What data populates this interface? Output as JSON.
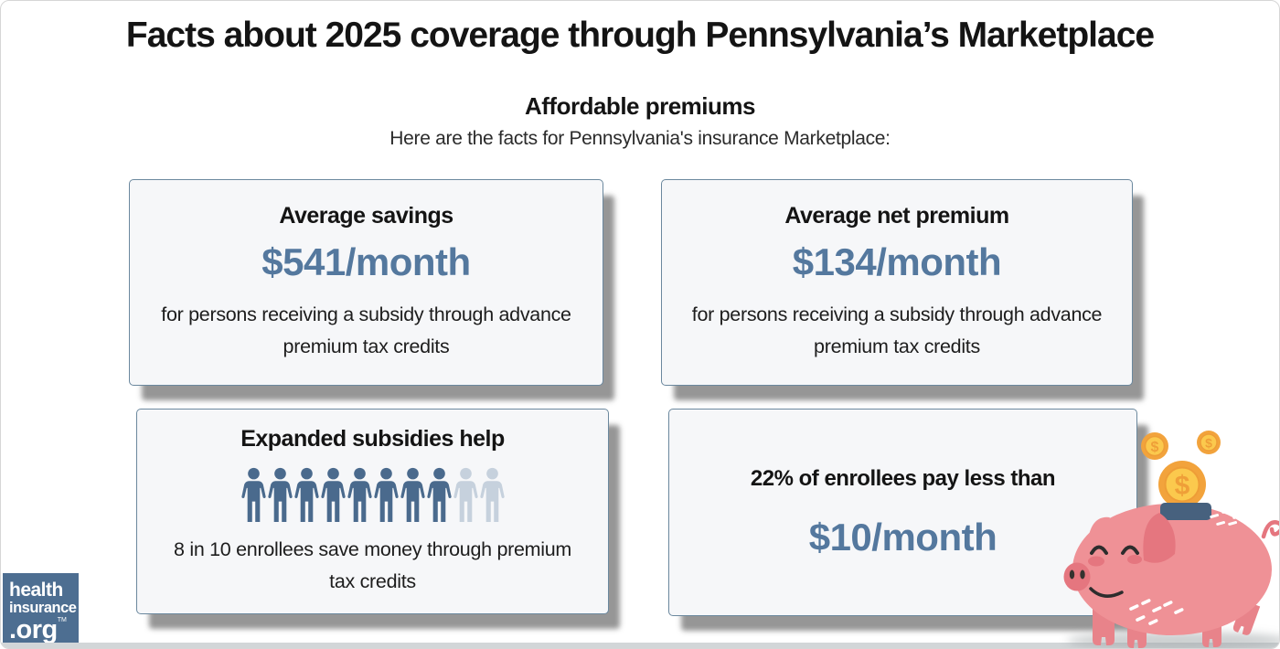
{
  "header": {
    "title": "Facts about 2025 coverage through Pennsylvania’s Marketplace",
    "section_title": "Affordable premiums",
    "tagline": "Here are the facts for Pennsylvania's insurance Marketplace:"
  },
  "cards": [
    {
      "heading": "Average savings",
      "amount": "$541/month",
      "note": "for persons receiving a subsidy through advance premium tax credits"
    },
    {
      "heading": "Average net premium",
      "amount": "$134/month",
      "note": "for persons receiving a subsidy through advance premium tax credits"
    },
    {
      "heading": "Expanded subsidies help",
      "note": "8 in 10 enrollees save money through premium tax credits",
      "pictograph": {
        "total": 10,
        "highlighted": 8,
        "highlight_meaning": "enrollees who save money through premium tax credits"
      }
    },
    {
      "heading": "22% of enrollees pay less than",
      "amount": "$10/month"
    }
  ],
  "logo": {
    "line1": "health",
    "line2": "insurance",
    "line3": ".org",
    "trademark": "TM"
  },
  "illustration": {
    "name": "piggy-bank-with-coins",
    "coin_symbol": "$"
  },
  "colors": {
    "accent_blue": "#54789e",
    "card_border": "#6b889e",
    "card_background": "#f6f7f9",
    "pictograph_filled": "#4a6a8d",
    "pictograph_muted": "#c6d1dd",
    "logo_background": "#4d6e91",
    "pig_pink": "#ef9196",
    "pig_dark_pink": "#e5767f",
    "coin_gold": "#f2a33c",
    "coin_yellow": "#fbc94d",
    "bottom_bar": "#d2d6d8"
  },
  "chart_data": {
    "type": "table",
    "title": "Facts about 2025 coverage through Pennsylvania’s Marketplace",
    "subtitle": "Affordable premiums",
    "rows": [
      {
        "metric": "Average savings",
        "value": 541,
        "unit": "$/month",
        "qualifier": "for persons receiving a subsidy through advance premium tax credits"
      },
      {
        "metric": "Average net premium",
        "value": 134,
        "unit": "$/month",
        "qualifier": "for persons receiving a subsidy through advance premium tax credits"
      },
      {
        "metric": "Enrollees who save money through premium tax credits",
        "value": 8,
        "unit": "in 10"
      },
      {
        "metric": "Enrollees paying less than $10/month",
        "value": 22,
        "unit": "%"
      }
    ]
  }
}
